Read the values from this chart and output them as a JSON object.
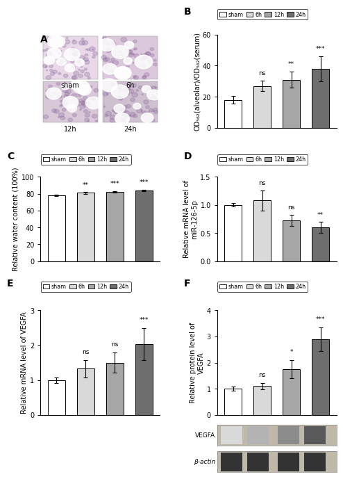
{
  "panel_B": {
    "title": "B",
    "categories": [
      "sham",
      "6h",
      "12h",
      "24h"
    ],
    "values": [
      18,
      27,
      31,
      38
    ],
    "errors": [
      2.5,
      3.5,
      5,
      8
    ],
    "colors": [
      "#ffffff",
      "#d9d9d9",
      "#a6a6a6",
      "#6e6e6e"
    ],
    "ylabel": "OD₅₆₂(alveolar)/OD₅₆₂(serum)",
    "ylim": [
      0,
      60
    ],
    "yticks": [
      0,
      20,
      40,
      60
    ],
    "significance": [
      "ns",
      "**",
      "***"
    ]
  },
  "panel_C": {
    "title": "C",
    "categories": [
      "sham",
      "6h",
      "12h",
      "24h"
    ],
    "values": [
      78,
      81,
      82,
      84
    ],
    "errors": [
      1.0,
      1.0,
      1.0,
      1.0
    ],
    "colors": [
      "#ffffff",
      "#d9d9d9",
      "#a6a6a6",
      "#6e6e6e"
    ],
    "ylabel": "Relative water content (100%)",
    "ylim": [
      0,
      100
    ],
    "yticks": [
      0,
      20,
      40,
      60,
      80,
      100
    ],
    "significance": [
      "**",
      "***",
      "***"
    ]
  },
  "panel_D": {
    "title": "D",
    "categories": [
      "sham",
      "6h",
      "12h",
      "24h"
    ],
    "values": [
      1.0,
      1.08,
      0.73,
      0.6
    ],
    "errors": [
      0.03,
      0.18,
      0.1,
      0.1
    ],
    "colors": [
      "#ffffff",
      "#d9d9d9",
      "#a6a6a6",
      "#6e6e6e"
    ],
    "ylabel": "Relative mRNA level of\nmiR-126-5p",
    "ylim": [
      0.0,
      1.5
    ],
    "yticks": [
      0.0,
      0.5,
      1.0,
      1.5
    ],
    "significance": [
      "ns",
      "ns",
      "**"
    ]
  },
  "panel_E": {
    "title": "E",
    "categories": [
      "sham",
      "6h",
      "12h",
      "24h"
    ],
    "values": [
      1.0,
      1.33,
      1.5,
      2.03
    ],
    "errors": [
      0.08,
      0.25,
      0.28,
      0.45
    ],
    "colors": [
      "#ffffff",
      "#d9d9d9",
      "#a6a6a6",
      "#6e6e6e"
    ],
    "ylabel": "Relative mRNA level of VEGFA",
    "ylim": [
      0,
      3
    ],
    "yticks": [
      0,
      1,
      2,
      3
    ],
    "significance": [
      "ns",
      "ns",
      "***"
    ]
  },
  "panel_F": {
    "title": "F",
    "categories": [
      "sham",
      "6h",
      "12h",
      "24h"
    ],
    "values": [
      1.0,
      1.1,
      1.75,
      2.9
    ],
    "errors": [
      0.08,
      0.12,
      0.35,
      0.45
    ],
    "colors": [
      "#ffffff",
      "#d9d9d9",
      "#a6a6a6",
      "#6e6e6e"
    ],
    "ylabel": "Relative protein level of\nVEGFA",
    "ylim": [
      0,
      4
    ],
    "yticks": [
      0,
      1,
      2,
      3,
      4
    ],
    "significance": [
      "ns",
      "*",
      "***"
    ],
    "wb_labels": [
      "VEGFA",
      "β-actin"
    ]
  },
  "legend_labels": [
    "sham",
    "6h",
    "12h",
    "24h"
  ],
  "legend_colors": [
    "#ffffff",
    "#d9d9d9",
    "#a6a6a6",
    "#6e6e6e"
  ],
  "bar_edgecolor": "#000000",
  "bar_width": 0.6,
  "font_size": 7,
  "label_fontsize": 7,
  "title_fontsize": 10,
  "panel_A_labels": [
    "sham",
    "6h",
    "12h",
    "24h"
  ],
  "histology_bg": "#e8d5e8",
  "histology_tissue": "#c8a0c8"
}
